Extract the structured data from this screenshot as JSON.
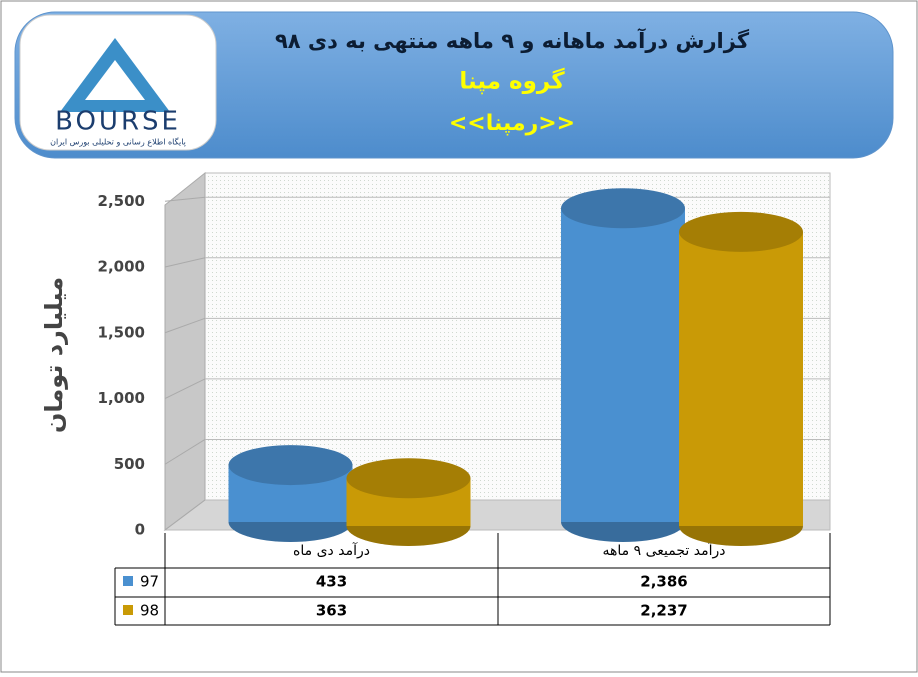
{
  "logo": {
    "text": "BOURSE",
    "subtitle": "پایگاه اطلاع رسانی و تحلیلی بورس ایران"
  },
  "chart_data": {
    "type": "cylinder-bar",
    "title": "گزارش درآمد ماهانه و ۹ ماهه منتهی به دی ۹۸",
    "subtitle": "گروه مپنا",
    "symbol": "<<رمپنا>>",
    "y_label": "میلیارد تومان",
    "categories": [
      "درآمد دی  ماه",
      "درآمد تجمیعی ۹ ماهه"
    ],
    "series": [
      {
        "name": "97",
        "color": "#4a90d0",
        "values": [
          433,
          2386
        ],
        "value_labels": [
          "433",
          "2,386"
        ]
      },
      {
        "name": "98",
        "color": "#c99a06",
        "values": [
          363,
          2237
        ],
        "value_labels": [
          "363",
          "2,237"
        ]
      }
    ],
    "ylim": [
      0,
      2700
    ],
    "yticks": [
      0,
      500,
      {
        "value": 1000,
        "label": "1,000"
      },
      {
        "value": 1500,
        "label": "1,500"
      },
      {
        "value": 2000,
        "label": "2,000"
      },
      {
        "value": 2500,
        "label": "2,500"
      }
    ],
    "grid": true
  }
}
